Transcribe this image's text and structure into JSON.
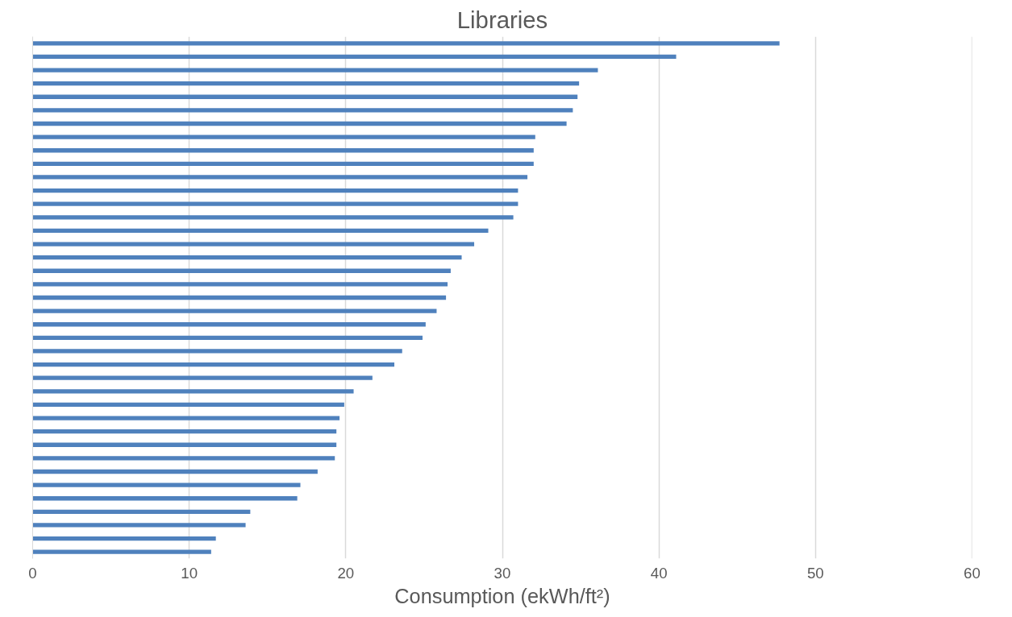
{
  "chart_data": {
    "type": "bar",
    "orientation": "horizontal",
    "title": "Libraries",
    "xlabel": "Consumption (ekWh/ft²)",
    "categories": [
      null,
      null,
      null,
      null,
      null,
      null,
      null,
      null,
      null,
      null,
      null,
      null,
      null,
      null,
      null,
      null,
      null,
      null,
      null,
      null,
      null,
      null,
      null,
      null,
      null,
      null,
      null,
      null,
      null,
      null,
      null,
      null,
      null,
      null,
      null,
      null,
      null,
      null,
      null
    ],
    "values": [
      47.7,
      41.1,
      36.1,
      34.9,
      34.8,
      34.5,
      34.1,
      32.1,
      32.0,
      32.0,
      31.6,
      31.0,
      31.0,
      30.7,
      29.1,
      28.2,
      27.4,
      26.7,
      26.5,
      26.4,
      25.8,
      25.1,
      24.9,
      23.6,
      23.1,
      21.7,
      20.5,
      19.9,
      19.6,
      19.4,
      19.4,
      19.3,
      18.2,
      17.1,
      16.9,
      13.9,
      13.6,
      11.7,
      11.4
    ],
    "color": "#4f81bd",
    "xlim": [
      0,
      60
    ],
    "xticks": [
      0,
      10,
      20,
      30,
      40,
      50,
      60
    ],
    "grid": "x",
    "tick_labels": "x"
  }
}
